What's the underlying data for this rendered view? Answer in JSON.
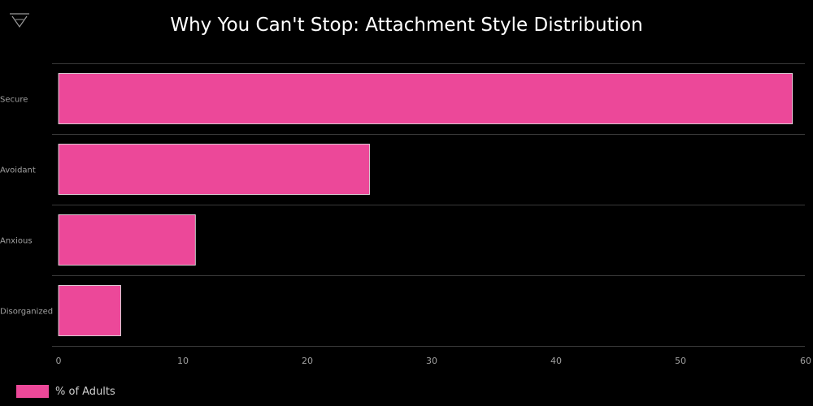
{
  "colors": {
    "background": "#000000",
    "bar": "#ec4899",
    "grid": "#3a3a3a",
    "axis_text": "#a0a0a0",
    "title": "#ffffff"
  },
  "logo_icon": "triangle-logo-icon",
  "chart_data": {
    "type": "bar",
    "orientation": "horizontal",
    "title": "Why You Can't Stop: Attachment Style Distribution",
    "categories": [
      "Secure",
      "Avoidant",
      "Anxious",
      "Disorganized"
    ],
    "series": [
      {
        "name": "% of Adults",
        "values": [
          59,
          25,
          11,
          5
        ],
        "color": "#ec4899"
      }
    ],
    "xlim": [
      0,
      60
    ],
    "xticks": [
      "0",
      "10",
      "20",
      "30",
      "40",
      "50",
      "60"
    ],
    "grid": true,
    "legend_position": "bottom-left"
  }
}
